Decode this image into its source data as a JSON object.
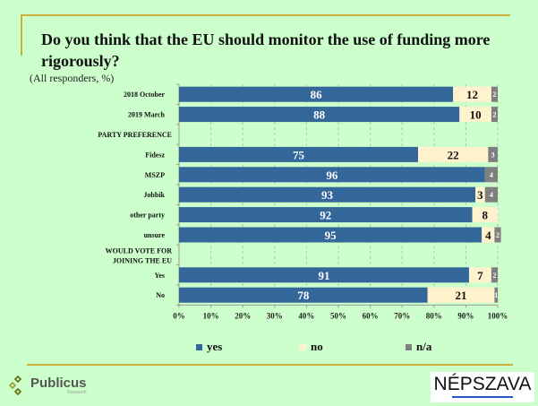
{
  "title": "Do you think that the EU should monitor the use of funding more rigorously?",
  "subtitle": "(All responders, %)",
  "chart_data": {
    "type": "bar",
    "orientation": "horizontal",
    "stacked": true,
    "title": "Do you think that the EU should monitor the use of funding more rigorously?",
    "subtitle": "(All responders, %)",
    "categories": [
      "2018 October",
      "2019 March",
      "PARTY PREFERENCE",
      "Fidesz",
      "MSZP",
      "Jobbik",
      "other party",
      "unsure",
      "WOULD VOTE FOR JOINING THE EU",
      "Yes",
      "No"
    ],
    "header_rows": [
      2,
      8
    ],
    "series": [
      {
        "name": "yes",
        "color": "#336699",
        "values": [
          86,
          88,
          null,
          75,
          96,
          93,
          92,
          95,
          null,
          91,
          78
        ]
      },
      {
        "name": "no",
        "color": "#fff2cc",
        "values": [
          12,
          10,
          null,
          22,
          0,
          3,
          8,
          4,
          null,
          7,
          21
        ]
      },
      {
        "name": "n/a",
        "color": "#7f7f7f",
        "values": [
          2,
          2,
          null,
          3,
          4,
          4,
          0,
          2,
          null,
          2,
          1
        ]
      }
    ],
    "xlim": [
      0,
      100
    ],
    "xticks": [
      "0%",
      "10%",
      "20%",
      "30%",
      "40%",
      "50%",
      "60%",
      "70%",
      "80%",
      "90%",
      "100%"
    ],
    "grid": true,
    "legend": "bottom"
  },
  "legend": [
    {
      "label": "yes",
      "color": "#336699"
    },
    {
      "label": "no",
      "color": "#fff2cc"
    },
    {
      "label": "n/a",
      "color": "#7f7f7f"
    }
  ],
  "logos": {
    "publicus": {
      "name": "Publicus",
      "sub": "Research"
    },
    "nepszava": {
      "name": "NÉPSZAVA"
    }
  }
}
